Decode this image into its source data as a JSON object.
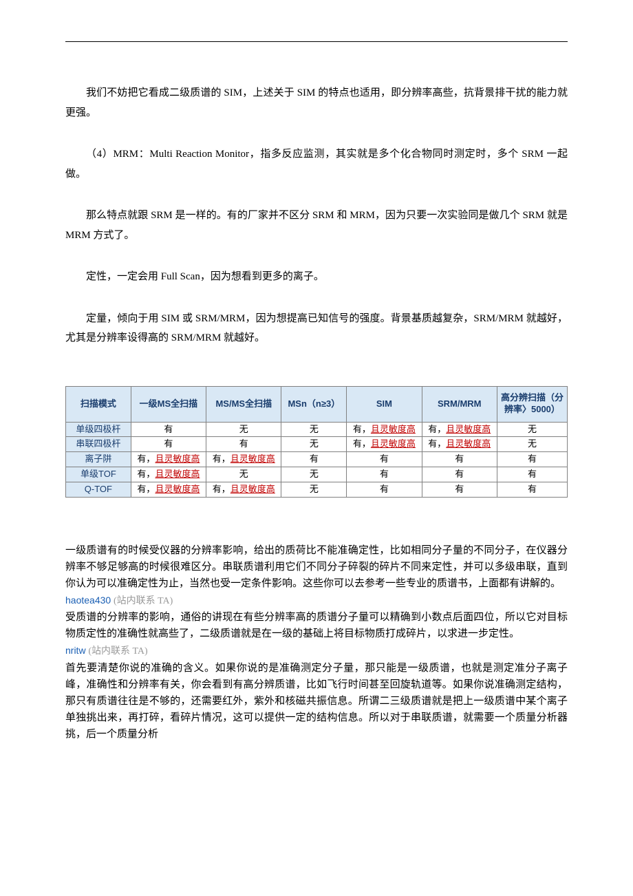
{
  "paragraphs": {
    "p1": "我们不妨把它看成二级质谱的 SIM，上述关于 SIM 的特点也适用，即分辨率高些，抗背景排干扰的能力就更强。",
    "p2": "（4）MRM：Multi Reaction Monitor，指多反应监测，其实就是多个化合物同时测定时，多个 SRM 一起做。",
    "p3": "那么特点就跟 SRM 是一样的。有的厂家并不区分 SRM 和 MRM，因为只要一次实验同是做几个 SRM 就是 MRM 方式了。",
    "p4": "定性，一定会用 Full Scan，因为想看到更多的离子。",
    "p5": "定量，倾向于用 SIM 或 SRM/MRM，因为想提高已知信号的强度。背景基质越复杂，SRM/MRM 就越好，尤其是分辨率设得高的 SRM/MRM 就越好。"
  },
  "table": {
    "headers": [
      "扫描模式",
      "一级MS全扫描",
      "MS/MS全扫描",
      "MSn（n≥3）",
      "SIM",
      "SRM/MRM",
      "高分辨扫描（分辨率〉5000）"
    ],
    "col_widths": [
      "13%",
      "15%",
      "15%",
      "13%",
      "15%",
      "15%",
      "14%"
    ],
    "rows": [
      {
        "label": "单级四极杆",
        "cells": [
          {
            "t": "有",
            "h": false
          },
          {
            "t": "无",
            "h": false
          },
          {
            "t": "无",
            "h": false
          },
          {
            "t": "有，且灵敏度高",
            "h": true
          },
          {
            "t": "有，且灵敏度高",
            "h": true
          },
          {
            "t": "无",
            "h": false
          }
        ]
      },
      {
        "label": "串联四极杆",
        "cells": [
          {
            "t": "有",
            "h": false
          },
          {
            "t": "有",
            "h": false
          },
          {
            "t": "无",
            "h": false
          },
          {
            "t": "有，且灵敏度高",
            "h": true
          },
          {
            "t": "有，且灵敏度高",
            "h": true
          },
          {
            "t": "无",
            "h": false
          }
        ]
      },
      {
        "label": "离子阱",
        "cells": [
          {
            "t": "有，且灵敏度高",
            "h": true
          },
          {
            "t": "有，且灵敏度高",
            "h": true
          },
          {
            "t": "有",
            "h": false
          },
          {
            "t": "有",
            "h": false
          },
          {
            "t": "有",
            "h": false
          },
          {
            "t": "有",
            "h": false
          }
        ]
      },
      {
        "label": "单级TOF",
        "cells": [
          {
            "t": "有，且灵敏度高",
            "h": true
          },
          {
            "t": "无",
            "h": false
          },
          {
            "t": "无",
            "h": false
          },
          {
            "t": "有",
            "h": false
          },
          {
            "t": "有",
            "h": false
          },
          {
            "t": "有",
            "h": false
          }
        ]
      },
      {
        "label": "Q-TOF",
        "cells": [
          {
            "t": "有，且灵敏度高",
            "h": true
          },
          {
            "t": "有，且灵敏度高",
            "h": true
          },
          {
            "t": "无",
            "h": false
          },
          {
            "t": "有",
            "h": false
          },
          {
            "t": "有",
            "h": false
          },
          {
            "t": "有",
            "h": false
          }
        ]
      }
    ],
    "header_bg": "#d9e8f5",
    "header_color": "#1a3d6d",
    "highlight_color": "#c00000"
  },
  "comments": {
    "c1": "一级质谱有的时候受仪器的分辨率影响，给出的质荷比不能准确定性，比如相同分子量的不同分子，在仪器分辨率不够足够高的时候很难区分。串联质谱利用它们不同分子碎裂的碎片不同来定性，并可以多级串联，直到你认为可以准确定性为止，当然也受一定条件影响。这些你可以去参考一些专业的质谱书，上面都有讲解的。",
    "u1_name": "haotea430",
    "u1_contact": "(站内联系 TA)",
    "c2": "受质谱的分辨率的影响，通俗的讲现在有些分辨率高的质谱分子量可以精确到小数点后面四位，所以它对目标物质定性的准确性就高些了，二级质谱就是在一级的基础上将目标物质打成碎片，以求进一步定性。",
    "u2_name": "nritw",
    "u2_contact": "(站内联系 TA)",
    "c3": "首先要清楚你说的准确的含义。如果你说的是准确测定分子量，那只能是一级质谱，也就是测定准分子离子峰，准确性和分辨率有关，你会看到有高分辨质谱，比如飞行时间甚至回旋轨道等。如果你说准确测定结构，那只有质谱往往是不够的，还需要红外，紫外和核磁共振信息。所谓二三级质谱就是把上一级质谱中某个离子单独挑出来，再打碎，看碎片情况，这可以提供一定的结构信息。所以对于串联质谱，就需要一个质量分析器挑，后一个质量分析"
  }
}
